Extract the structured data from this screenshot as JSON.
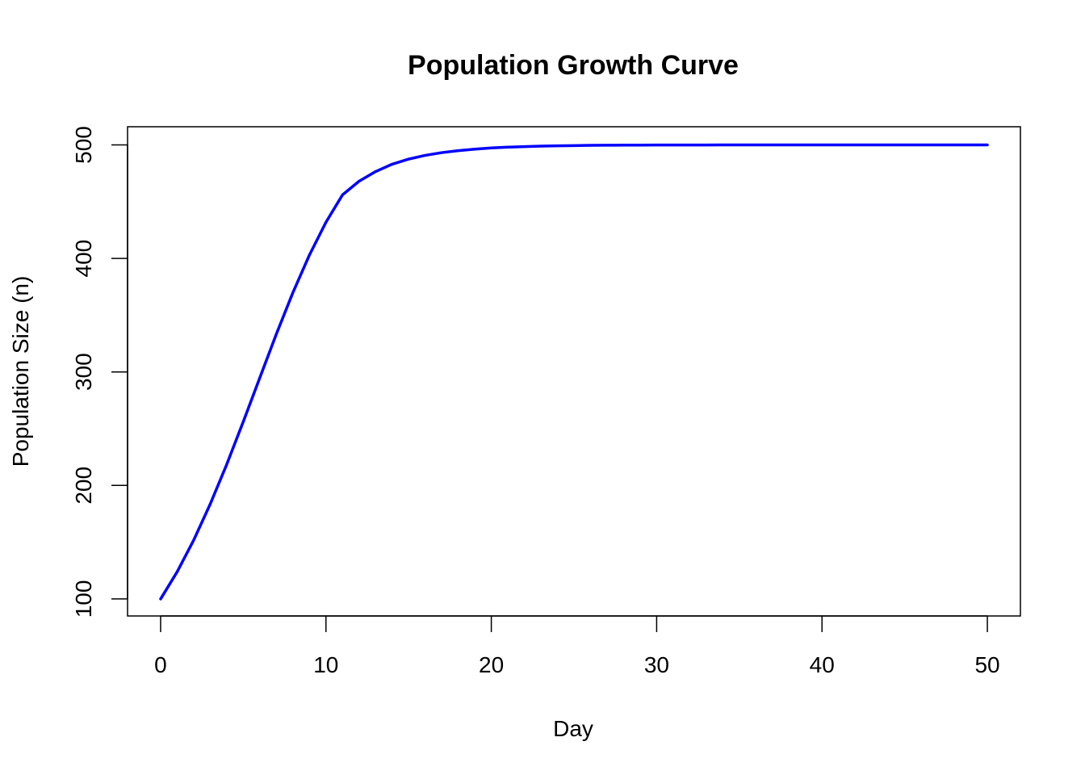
{
  "chart_data": {
    "type": "line",
    "title": "Population Growth Curve",
    "xlabel": "Day",
    "ylabel": "Population Size (n)",
    "xlim": [
      -2,
      52
    ],
    "ylim": [
      85,
      516
    ],
    "x_ticks": [
      0,
      10,
      20,
      30,
      40,
      50
    ],
    "y_ticks": [
      100,
      200,
      300,
      400,
      500
    ],
    "grid": false,
    "legend": "none",
    "series": [
      {
        "color": "#0000ff",
        "x": [
          0,
          1,
          2,
          3,
          4,
          5,
          6,
          7,
          8,
          9,
          10,
          11,
          12,
          13,
          14,
          15,
          16,
          17,
          18,
          19,
          20,
          21,
          22,
          23,
          24,
          25,
          26,
          27,
          28,
          29,
          30,
          31,
          32,
          33,
          34,
          35,
          36,
          37,
          38,
          39,
          40,
          41,
          42,
          43,
          44,
          45,
          46,
          47,
          48,
          49,
          50
        ],
        "y": [
          100,
          123.9,
          151.8,
          183.6,
          218.6,
          256.2,
          294.9,
          333.4,
          369.9,
          403.0,
          431.9,
          456.0,
          468.0,
          476.5,
          483.0,
          487.5,
          490.8,
          493.2,
          494.9,
          496.3,
          497.3,
          498.0,
          498.5,
          498.9,
          499.2,
          499.4,
          499.6,
          499.7,
          499.8,
          499.8,
          499.9,
          499.9,
          499.9,
          499.9,
          500.0,
          500.0,
          500.0,
          500.0,
          500.0,
          500.0,
          500.0,
          500.0,
          500.0,
          500.0,
          500.0,
          500.0,
          500.0,
          500.0,
          500.0,
          500.0,
          500.0
        ]
      }
    ]
  }
}
